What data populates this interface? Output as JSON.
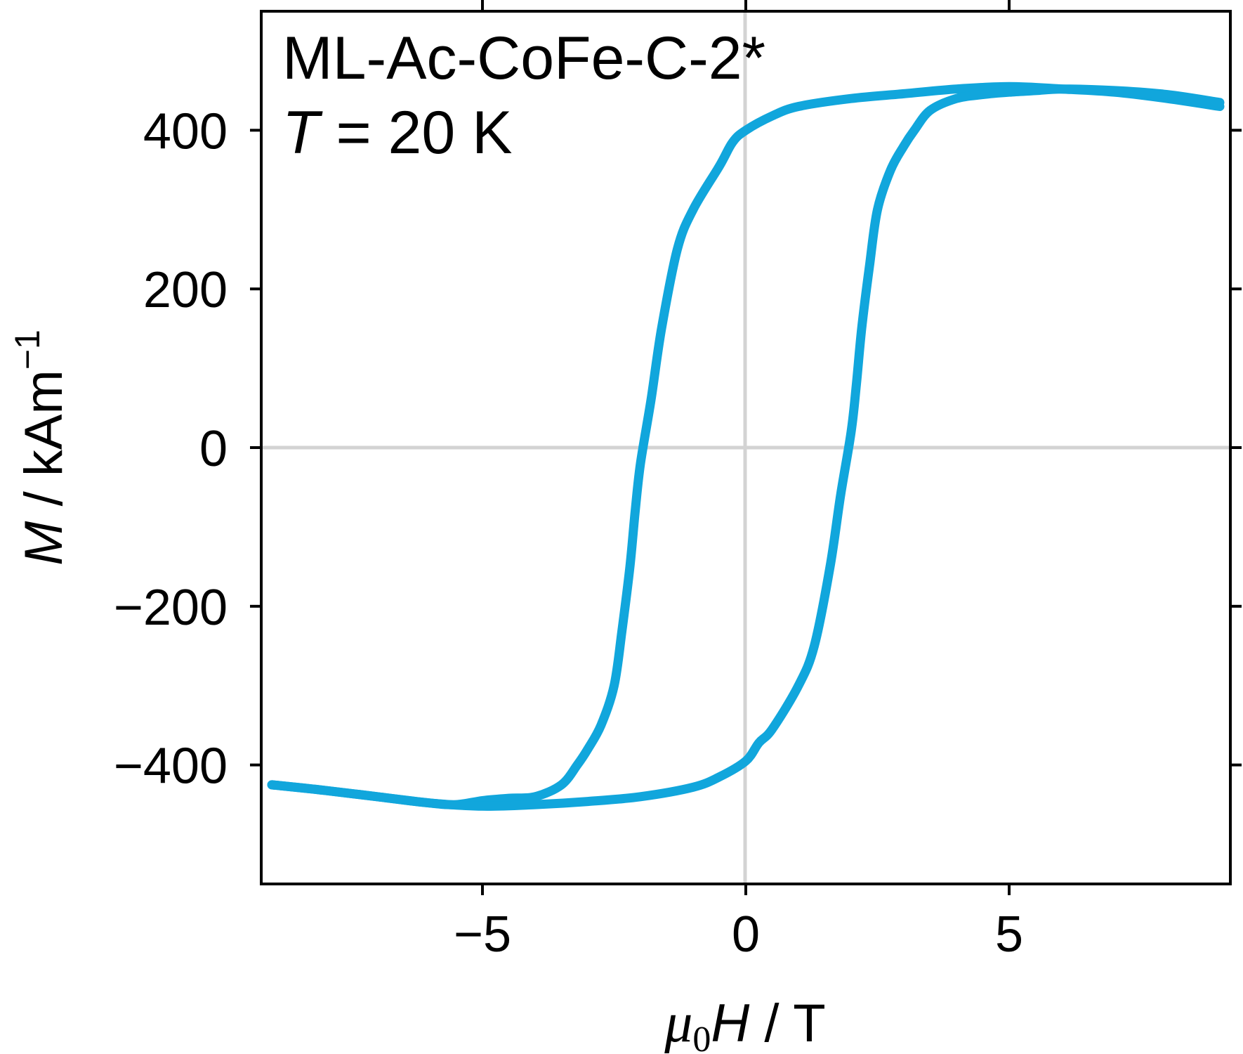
{
  "chart_data": {
    "type": "line",
    "title": "",
    "annotations": {
      "sample": "ML-Ac-CoFe-C-2*",
      "temperature_symbol": "T",
      "temperature_text": " = 20 K"
    },
    "xlabel": {
      "symbol": "μ",
      "subscript": "0",
      "variable": "H",
      "unit": " / T"
    },
    "ylabel": {
      "variable": "M",
      "unit": " / kAm",
      "exponent": "−1"
    },
    "xlim": [
      -9.2,
      9.2
    ],
    "ylim": [
      -550,
      550
    ],
    "xticks": [
      -5,
      0,
      5
    ],
    "xtick_labels": [
      "−5",
      "0",
      "5"
    ],
    "yticks": [
      -400,
      -200,
      0,
      200,
      400
    ],
    "ytick_labels": [
      "−400",
      "−200",
      "0",
      "200",
      "400"
    ],
    "reference_lines": {
      "x": 0,
      "y": 0,
      "color": "#d3d3d3"
    },
    "grid": false,
    "colors": {
      "series": "#11a6dc",
      "axes": "#000000"
    },
    "series": [
      {
        "branch": "descending",
        "x": [
          9.0,
          8.0,
          7.0,
          6.0,
          5.0,
          4.0,
          3.0,
          2.0,
          1.0,
          0.5,
          0.0,
          -0.25,
          -0.5,
          -1.0,
          -1.3,
          -1.6,
          -1.8,
          -2.0,
          -2.1,
          -2.2,
          -2.35,
          -2.5,
          -2.75,
          -3.0,
          -3.2,
          -3.5,
          -4.0,
          -4.5,
          -5.0,
          -5.5,
          -6.0,
          -7.0,
          -8.0,
          -9.0
        ],
        "y": [
          430,
          440,
          448,
          452,
          455,
          452,
          446,
          440,
          430,
          418,
          400,
          385,
          355,
          300,
          250,
          150,
          60,
          -20,
          -80,
          -150,
          -230,
          -300,
          -350,
          -380,
          -400,
          -425,
          -440,
          -442,
          -445,
          -450,
          -448,
          -440,
          -432,
          -425
        ]
      },
      {
        "branch": "ascending",
        "x": [
          -9.0,
          -8.0,
          -7.0,
          -6.0,
          -5.0,
          -4.0,
          -3.0,
          -2.0,
          -1.0,
          -0.5,
          0.0,
          0.25,
          0.5,
          1.0,
          1.3,
          1.6,
          1.8,
          2.0,
          2.1,
          2.2,
          2.35,
          2.5,
          2.75,
          3.0,
          3.2,
          3.5,
          4.0,
          4.5,
          5.0,
          5.5,
          6.0,
          7.0,
          8.0,
          9.0
        ],
        "y": [
          -425,
          -432,
          -440,
          -448,
          -452,
          -450,
          -446,
          -440,
          -428,
          -415,
          -395,
          -372,
          -355,
          -300,
          -250,
          -150,
          -60,
          20,
          80,
          150,
          230,
          300,
          350,
          380,
          400,
          425,
          440,
          445,
          448,
          450,
          452,
          450,
          445,
          435
        ]
      }
    ]
  }
}
